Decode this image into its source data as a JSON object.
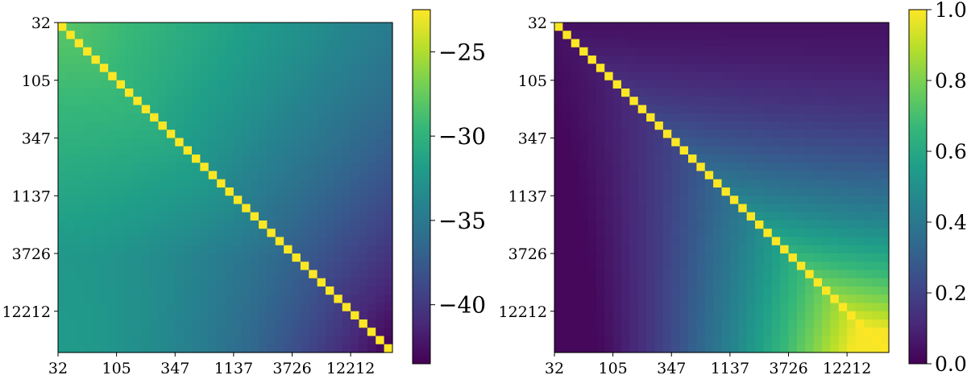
{
  "colormap": "viridis",
  "colors": {
    "viridis_stops": [
      "#440154",
      "#482878",
      "#3e4989",
      "#31688e",
      "#26828e",
      "#1f9e89",
      "#35b779",
      "#6ece58",
      "#b5de2b",
      "#fde725"
    ],
    "diagonal": "#fde725"
  },
  "chart_data": [
    {
      "type": "heatmap",
      "title": "",
      "xlabel": "",
      "ylabel": "",
      "grid_size": 40,
      "tick_labels": [
        "32",
        "105",
        "347",
        "1137",
        "3726",
        "12212"
      ],
      "tick_indices": [
        0,
        7,
        14,
        21,
        28,
        35
      ],
      "color_range": [
        -43.5,
        -22.5
      ],
      "colorbar_ticks": [
        -25,
        -30,
        -35,
        -40
      ],
      "colorbar_tick_labels": [
        "−25",
        "−30",
        "−35",
        "−40"
      ],
      "legend": "colorbar-right",
      "grid": false,
      "anchor_values": {
        "diagonal": -22.5,
        "near_diagonal_top_left": -28,
        "top_right": -37,
        "bottom_left": -33,
        "bottom_right": -43.3
      }
    },
    {
      "type": "heatmap",
      "title": "",
      "xlabel": "",
      "ylabel": "",
      "grid_size": 40,
      "tick_labels": [
        "32",
        "105",
        "347",
        "1137",
        "3726",
        "12212"
      ],
      "tick_indices": [
        0,
        7,
        14,
        21,
        28,
        35
      ],
      "color_range": [
        0.0,
        1.0
      ],
      "colorbar_ticks": [
        1.0,
        0.8,
        0.6,
        0.4,
        0.2,
        0.0
      ],
      "colorbar_tick_labels": [
        "1.0",
        "0.8",
        "0.6",
        "0.4",
        "0.2",
        "0.0"
      ],
      "legend": "colorbar-right",
      "grid": false,
      "anchor_values": {
        "diagonal": 1.0,
        "top_left": 0.05,
        "top_right": 0.1,
        "bottom_left": 0.1,
        "bottom_right": 0.97,
        "right_edge_mid": 0.55
      }
    }
  ]
}
